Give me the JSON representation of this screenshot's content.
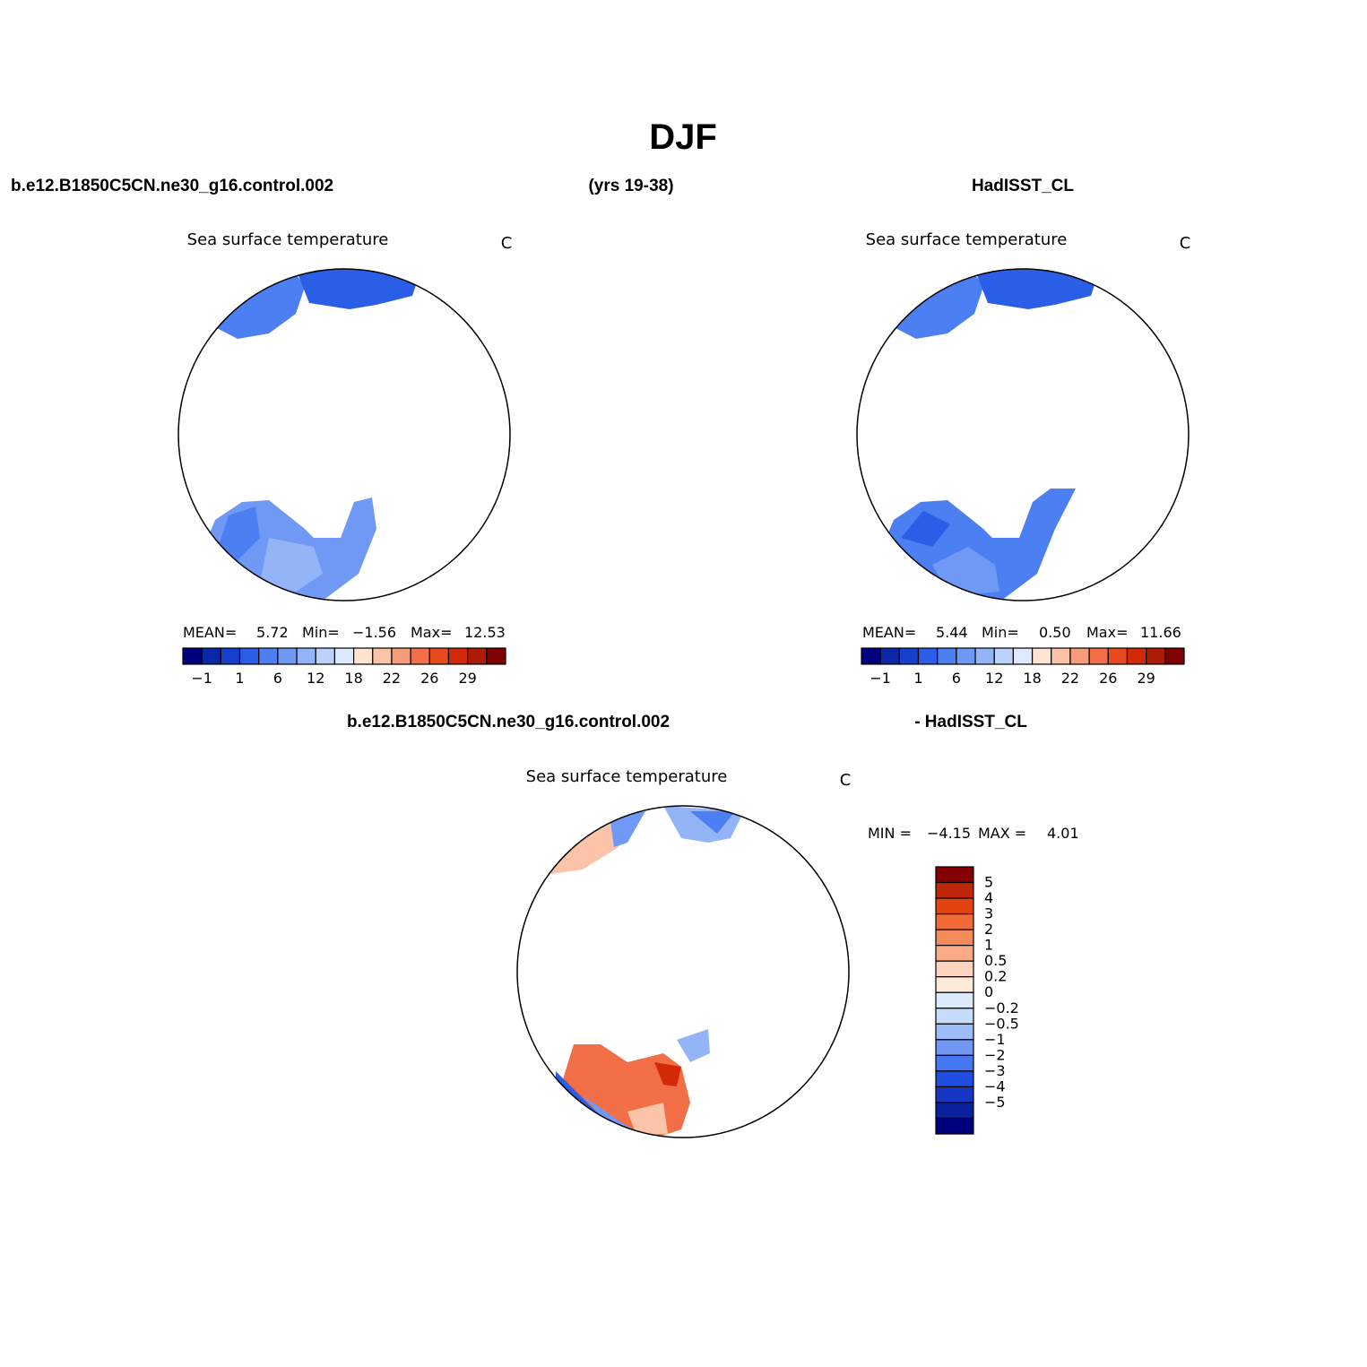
{
  "title": "DJF",
  "header": {
    "left": "b.e12.B1850C5CN.ne30_g16.control.002",
    "center": "(yrs 19-38)",
    "right": "HadISST_CL"
  },
  "diff_header": {
    "left": "b.e12.B1850C5CN.ne30_g16.control.002",
    "right": "- HadISST_CL"
  },
  "panels": [
    {
      "name": "model",
      "title": "Sea surface temperature",
      "units": "C",
      "stats": {
        "mean_label": "MEAN=",
        "mean": "5.72",
        "min_label": "Min=",
        "min": "−1.56",
        "max_label": "Max=",
        "max": "12.53"
      }
    },
    {
      "name": "obs",
      "title": "Sea surface temperature",
      "units": "C",
      "stats": {
        "mean_label": "MEAN=",
        "mean": "5.44",
        "min_label": "Min=",
        "min": "0.50",
        "max_label": "Max=",
        "max": "11.66"
      }
    },
    {
      "name": "diff",
      "title": "Sea surface temperature",
      "units": "C",
      "stats": {
        "min_label": "MIN =",
        "min": "−4.15",
        "max_label": "MAX =",
        "max": "4.01"
      }
    }
  ],
  "colorbar_abs": {
    "colors": [
      "#00007f",
      "#0c26a8",
      "#153fcc",
      "#2a5ee6",
      "#4b7ff2",
      "#7099f5",
      "#93b4f6",
      "#bcd2fa",
      "#dde9fc",
      "#fde3d2",
      "#fbc3a8",
      "#f59d7a",
      "#f16e46",
      "#e84a1e",
      "#d12a08",
      "#ad1a06",
      "#7f0000"
    ],
    "labels": [
      "−1",
      "1",
      "6",
      "12",
      "18",
      "22",
      "26",
      "29"
    ]
  },
  "colorbar_diff": {
    "colors": [
      "#00007f",
      "#0a22a0",
      "#1535c2",
      "#1f4ee0",
      "#4477f0",
      "#6f98f5",
      "#9dbdf8",
      "#c7dbfb",
      "#dceafc",
      "#fdeadb",
      "#fdd3bd",
      "#fbab86",
      "#f58a5a",
      "#f16a36",
      "#e3430f",
      "#bd2606",
      "#850000"
    ],
    "labels": [
      "5",
      "4",
      "3",
      "2",
      "1",
      "0.5",
      "0.2",
      "0",
      "−0.2",
      "−0.5",
      "−1",
      "−2",
      "−3",
      "−4",
      "−5"
    ]
  },
  "map": {
    "land_color": "#ffffff",
    "coast_color": "#000000"
  }
}
